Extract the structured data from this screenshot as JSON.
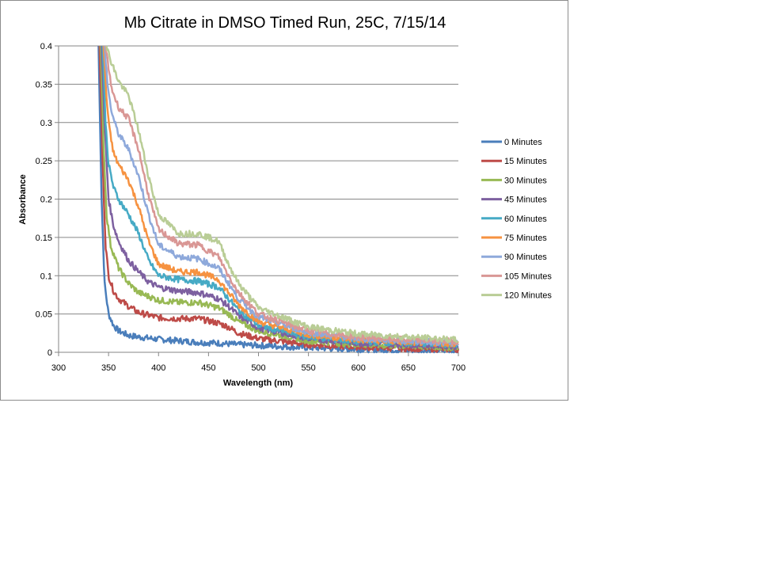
{
  "chart_data": {
    "type": "line",
    "title": "Mb Citrate in DMSO Timed Run, 25C, 7/15/14",
    "xlabel": "Wavelength (nm)",
    "ylabel": "Absorbance",
    "xlim": [
      300,
      700
    ],
    "ylim": [
      0,
      0.4
    ],
    "x_ticks": [
      "300",
      "350",
      "400",
      "450",
      "500",
      "550",
      "600",
      "650",
      "700"
    ],
    "y_ticks": [
      "0",
      "0.05",
      "0.1",
      "0.15",
      "0.2",
      "0.25",
      "0.3",
      "0.35",
      "0.4"
    ],
    "grid": "horizontal",
    "legend_position": "right",
    "series": [
      {
        "name": "0 Minutes",
        "color": "#4a7ebb",
        "x": [
          340,
          343,
          346,
          350,
          355,
          360,
          370,
          380,
          400,
          420,
          440,
          460,
          480,
          500,
          550,
          600,
          650,
          700
        ],
        "y": [
          0.4,
          0.2,
          0.09,
          0.05,
          0.035,
          0.028,
          0.022,
          0.02,
          0.017,
          0.015,
          0.013,
          0.012,
          0.01,
          0.009,
          0.006,
          0.004,
          0.003,
          0.002
        ]
      },
      {
        "name": "15 Minutes",
        "color": "#be4b48",
        "x": [
          341,
          344,
          347,
          350,
          355,
          360,
          370,
          380,
          400,
          420,
          440,
          460,
          470,
          480,
          500,
          550,
          600,
          650,
          700
        ],
        "y": [
          0.4,
          0.25,
          0.14,
          0.1,
          0.08,
          0.07,
          0.06,
          0.052,
          0.045,
          0.044,
          0.044,
          0.038,
          0.033,
          0.025,
          0.018,
          0.01,
          0.007,
          0.005,
          0.004
        ]
      },
      {
        "name": "30 Minutes",
        "color": "#98b954",
        "x": [
          342,
          345,
          348,
          352,
          360,
          370,
          380,
          400,
          420,
          440,
          460,
          470,
          480,
          500,
          550,
          600,
          650,
          700
        ],
        "y": [
          0.4,
          0.27,
          0.18,
          0.14,
          0.11,
          0.09,
          0.078,
          0.068,
          0.065,
          0.065,
          0.058,
          0.05,
          0.04,
          0.028,
          0.015,
          0.01,
          0.008,
          0.006
        ]
      },
      {
        "name": "45 Minutes",
        "color": "#7d60a0",
        "x": [
          343,
          346,
          350,
          355,
          360,
          370,
          380,
          390,
          400,
          420,
          440,
          460,
          470,
          480,
          500,
          550,
          600,
          650,
          700
        ],
        "y": [
          0.4,
          0.3,
          0.2,
          0.165,
          0.145,
          0.12,
          0.105,
          0.092,
          0.085,
          0.08,
          0.078,
          0.07,
          0.06,
          0.048,
          0.032,
          0.018,
          0.012,
          0.01,
          0.008
        ]
      },
      {
        "name": "60 Minutes",
        "color": "#46aac5",
        "x": [
          344,
          347,
          350,
          355,
          360,
          370,
          380,
          390,
          400,
          420,
          440,
          460,
          470,
          480,
          500,
          550,
          600,
          650,
          700
        ],
        "y": [
          0.4,
          0.3,
          0.245,
          0.215,
          0.2,
          0.18,
          0.155,
          0.12,
          0.1,
          0.095,
          0.093,
          0.085,
          0.07,
          0.055,
          0.035,
          0.02,
          0.014,
          0.012,
          0.01
        ]
      },
      {
        "name": "75 Minutes",
        "color": "#f69240",
        "x": [
          345,
          348,
          351,
          355,
          360,
          370,
          380,
          390,
          400,
          420,
          440,
          460,
          470,
          480,
          500,
          550,
          600,
          650,
          700
        ],
        "y": [
          0.4,
          0.33,
          0.29,
          0.26,
          0.245,
          0.225,
          0.19,
          0.145,
          0.115,
          0.105,
          0.105,
          0.095,
          0.078,
          0.062,
          0.04,
          0.023,
          0.016,
          0.013,
          0.011
        ]
      },
      {
        "name": "90 Minutes",
        "color": "#8ea9db",
        "x": [
          346,
          349,
          352,
          356,
          360,
          370,
          380,
          390,
          400,
          420,
          440,
          460,
          470,
          480,
          500,
          550,
          600,
          650,
          700
        ],
        "y": [
          0.4,
          0.35,
          0.32,
          0.3,
          0.285,
          0.265,
          0.23,
          0.18,
          0.14,
          0.125,
          0.122,
          0.11,
          0.09,
          0.07,
          0.046,
          0.026,
          0.018,
          0.015,
          0.012
        ]
      },
      {
        "name": "105 Minutes",
        "color": "#d99795",
        "x": [
          347,
          350,
          353,
          357,
          360,
          370,
          380,
          390,
          400,
          420,
          440,
          460,
          470,
          480,
          500,
          550,
          600,
          650,
          700
        ],
        "y": [
          0.4,
          0.37,
          0.345,
          0.33,
          0.32,
          0.305,
          0.265,
          0.205,
          0.16,
          0.142,
          0.14,
          0.125,
          0.1,
          0.078,
          0.05,
          0.028,
          0.02,
          0.016,
          0.014
        ]
      },
      {
        "name": "120 Minutes",
        "color": "#b9cd96",
        "x": [
          348,
          351,
          354,
          358,
          362,
          370,
          380,
          390,
          400,
          420,
          440,
          460,
          470,
          480,
          500,
          550,
          600,
          650,
          700
        ],
        "y": [
          0.4,
          0.385,
          0.375,
          0.36,
          0.35,
          0.335,
          0.29,
          0.23,
          0.18,
          0.155,
          0.155,
          0.145,
          0.115,
          0.09,
          0.058,
          0.033,
          0.024,
          0.02,
          0.016
        ]
      }
    ]
  }
}
